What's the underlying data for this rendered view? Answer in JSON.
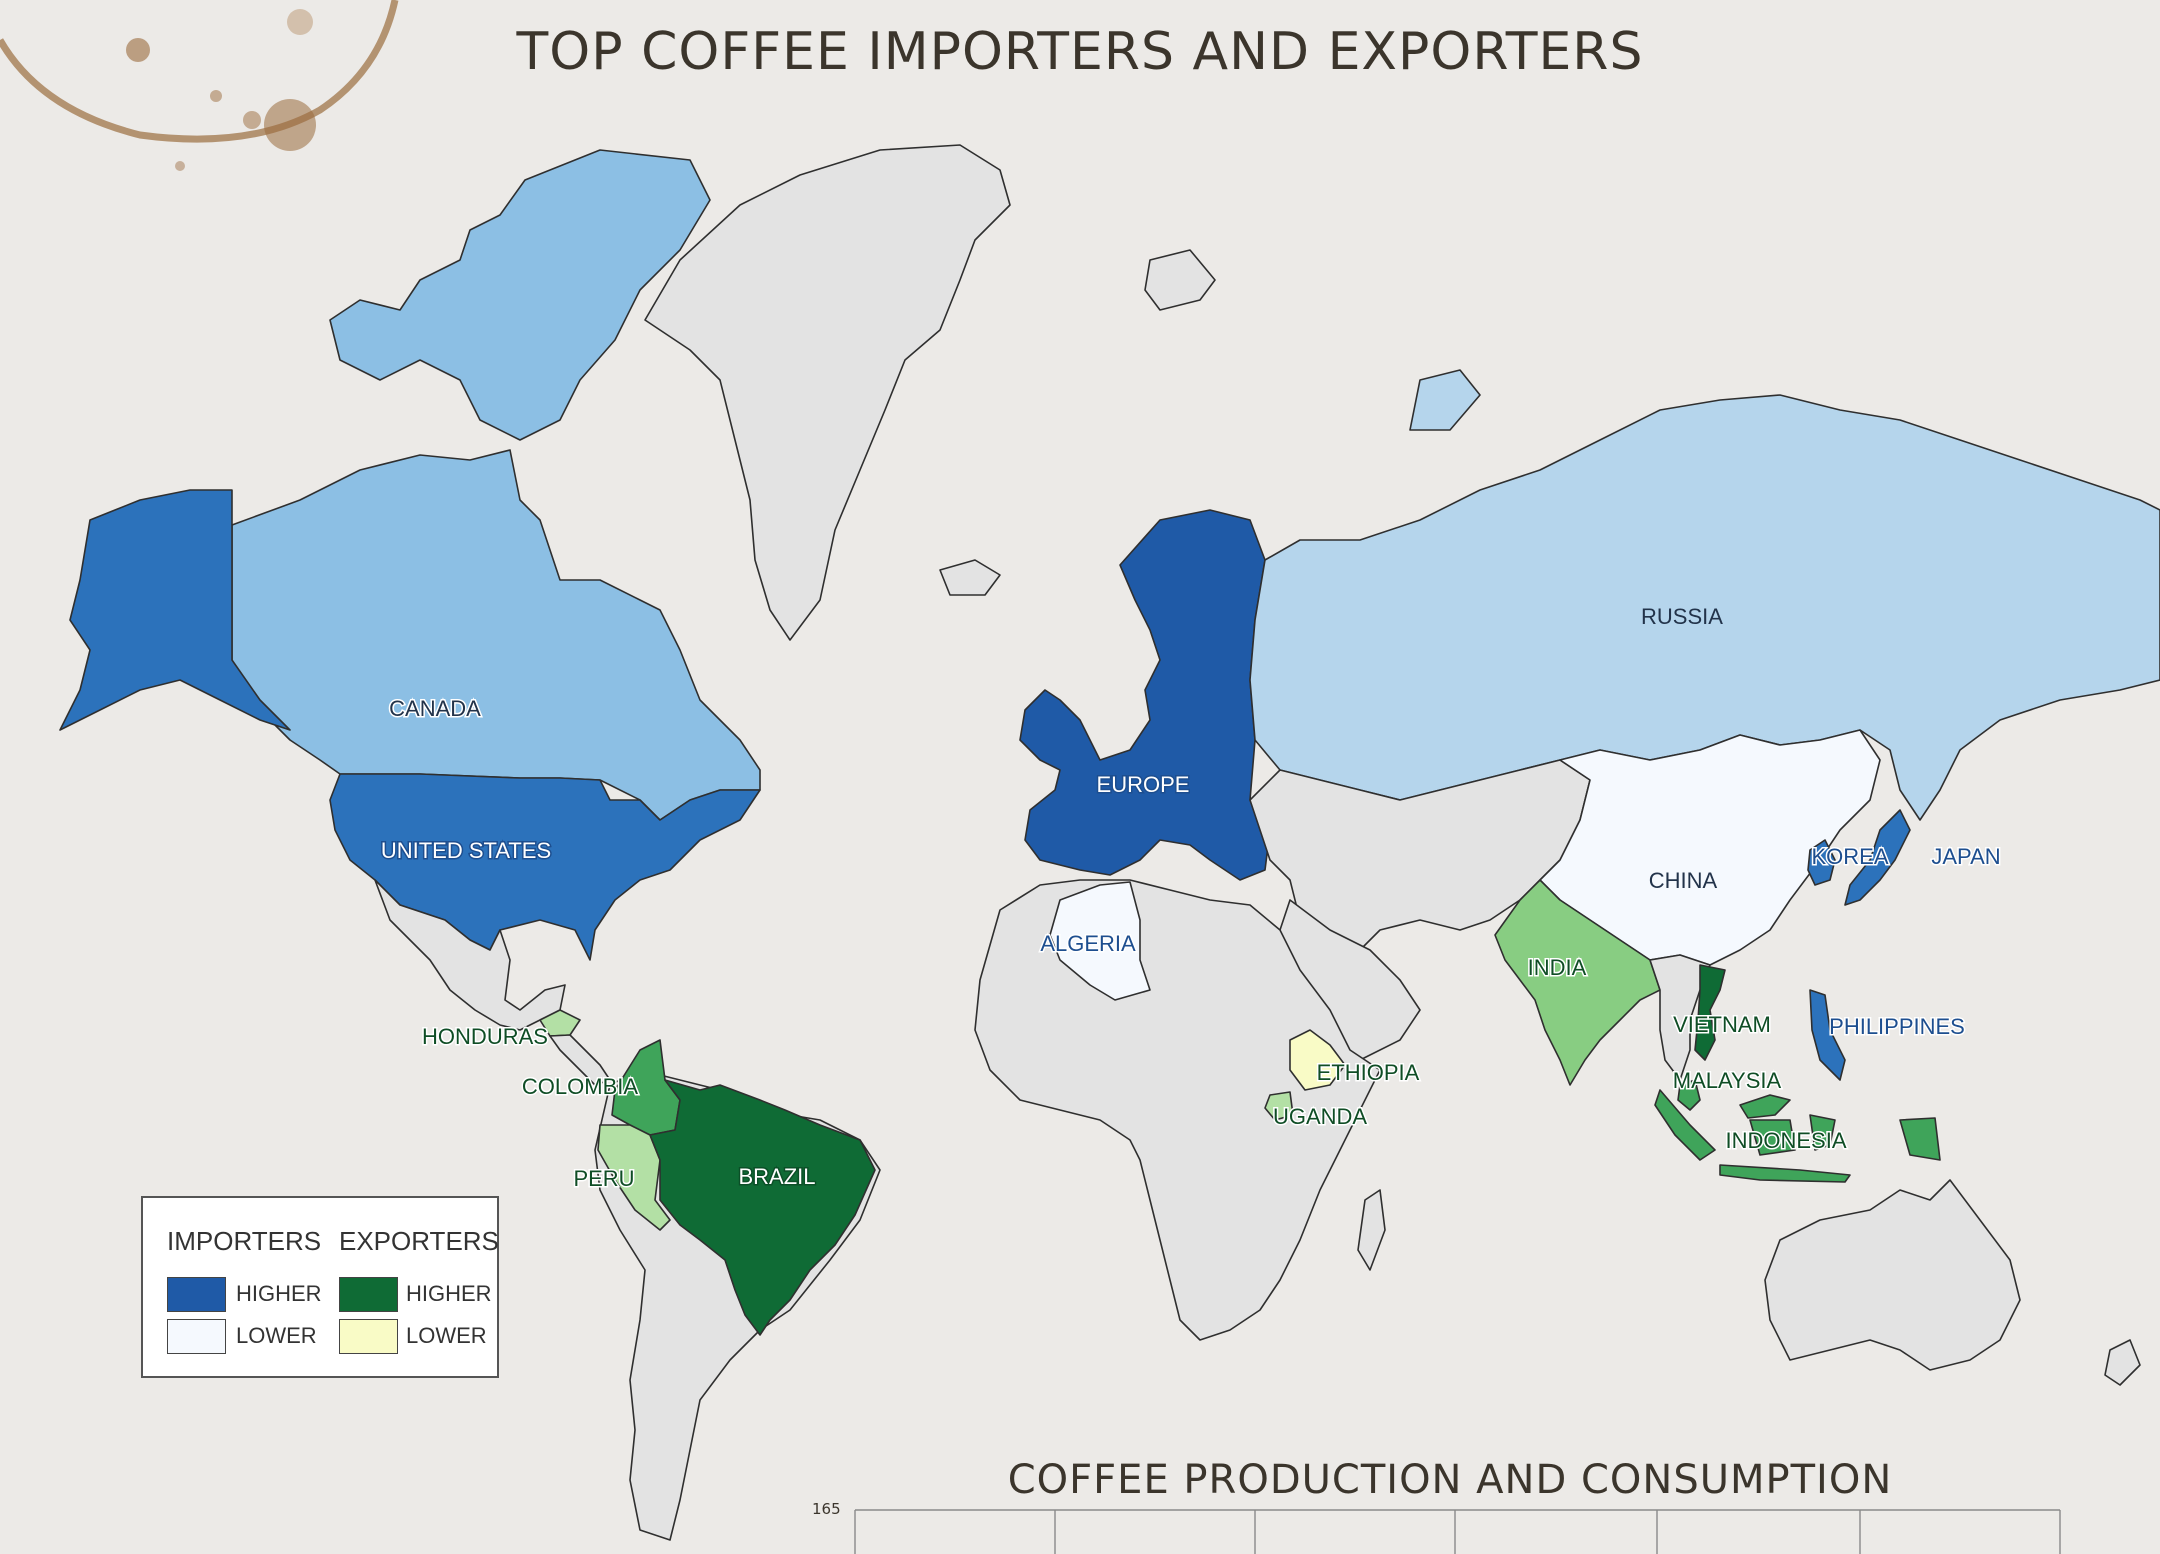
{
  "title": "TOP COFFEE IMPORTERS AND EXPORTERS",
  "subtitle": "COFFEE PRODUCTION AND CONSUMPTION",
  "y_tick": "165",
  "colors": {
    "ocean": "#eceae7",
    "importer_higher": "#1f5aa7",
    "importer_mid": "#2c72bb",
    "importer_light": "#8cbfe4",
    "importer_lighter": "#b5d5ec",
    "importer_lowest": "#f5f9fe",
    "exporter_higher": "#0f6b35",
    "exporter_mid": "#3fa45a",
    "exporter_light": "#88cd82",
    "exporter_lighter": "#b3e0a5",
    "exporter_lowest": "#f9fbc6",
    "no_data": "#e3e3e3",
    "coffee_stain": "#a0764a"
  },
  "legend": {
    "importers": {
      "heading": "IMPORTERS",
      "higher": "HIGHER",
      "lower": "LOWER"
    },
    "exporters": {
      "heading": "EXPORTERS",
      "higher": "HIGHER",
      "lower": "LOWER"
    }
  },
  "countries": {
    "canada": "CANADA",
    "united_states": "UNITED STATES",
    "russia": "RUSSIA",
    "europe": "EUROPE",
    "china": "CHINA",
    "korea": "KOREA",
    "japan": "JAPAN",
    "philippines": "PHILIPPINES",
    "algeria": "ALGERIA",
    "india": "INDIA",
    "vietnam": "VIETNAM",
    "malaysia": "MALAYSIA",
    "indonesia": "INDONESIA",
    "ethiopia": "ETHIOPIA",
    "uganda": "UGANDA",
    "honduras": "HONDURAS",
    "colombia": "COLOMBIA",
    "peru": "PERU",
    "brazil": "BRAZIL"
  }
}
